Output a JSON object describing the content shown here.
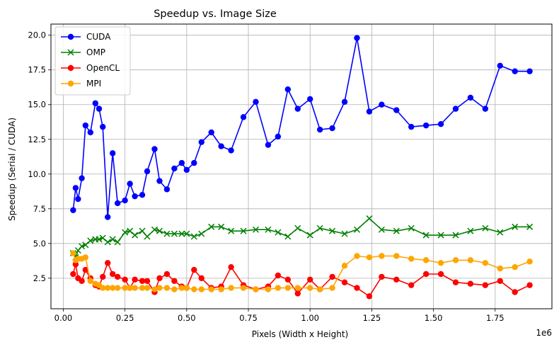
{
  "chart_data": {
    "type": "line",
    "title": "Speedup vs. Image Size",
    "xlabel": "Pixels (Width x Height)",
    "ylabel": "Speedup (Serial / CUDA)",
    "x_offset_label": "1e6",
    "xlim": [
      -0.05,
      1.98
    ],
    "ylim": [
      0.3,
      20.8
    ],
    "xticks": [
      0.0,
      0.25,
      0.5,
      0.75,
      1.0,
      1.25,
      1.5,
      1.75
    ],
    "xtick_labels": [
      "0.00",
      "0.25",
      "0.50",
      "0.75",
      "1.00",
      "1.25",
      "1.50",
      "1.75"
    ],
    "yticks": [
      2.5,
      5.0,
      7.5,
      10.0,
      12.5,
      15.0,
      17.5,
      20.0
    ],
    "ytick_labels": [
      "2.5",
      "5.0",
      "7.5",
      "10.0",
      "12.5",
      "15.0",
      "17.5",
      "20.0"
    ],
    "grid": true,
    "legend_position": "top-left",
    "series": [
      {
        "name": "CUDA",
        "color": "#0000ff",
        "marker": "circle",
        "x": [
          0.04,
          0.05,
          0.06,
          0.075,
          0.09,
          0.11,
          0.13,
          0.145,
          0.16,
          0.18,
          0.2,
          0.22,
          0.25,
          0.27,
          0.29,
          0.32,
          0.34,
          0.37,
          0.39,
          0.42,
          0.45,
          0.48,
          0.5,
          0.53,
          0.56,
          0.6,
          0.64,
          0.68,
          0.73,
          0.78,
          0.83,
          0.87,
          0.91,
          0.95,
          1.0,
          1.04,
          1.09,
          1.14,
          1.19,
          1.24,
          1.29,
          1.35,
          1.41,
          1.47,
          1.53,
          1.59,
          1.65,
          1.71,
          1.77,
          1.83,
          1.89
        ],
        "y": [
          7.4,
          9.0,
          8.2,
          9.7,
          13.5,
          13.0,
          15.1,
          14.7,
          13.4,
          6.9,
          11.5,
          7.9,
          8.1,
          9.3,
          8.4,
          8.5,
          10.2,
          11.8,
          9.5,
          8.9,
          10.4,
          10.8,
          10.3,
          10.8,
          12.3,
          13.0,
          12.0,
          11.7,
          14.1,
          15.2,
          12.1,
          12.7,
          16.1,
          14.7,
          15.4,
          13.2,
          13.3,
          15.2,
          19.8,
          14.5,
          15.0,
          14.6,
          13.4,
          13.5,
          13.6,
          14.7,
          15.5,
          14.7,
          17.8,
          17.4,
          17.4
        ]
      },
      {
        "name": "OMP",
        "color": "#008000",
        "marker": "x",
        "x": [
          0.04,
          0.05,
          0.06,
          0.075,
          0.09,
          0.11,
          0.13,
          0.145,
          0.16,
          0.18,
          0.2,
          0.22,
          0.25,
          0.27,
          0.29,
          0.32,
          0.34,
          0.37,
          0.39,
          0.42,
          0.45,
          0.48,
          0.5,
          0.53,
          0.56,
          0.6,
          0.64,
          0.68,
          0.73,
          0.78,
          0.83,
          0.87,
          0.91,
          0.95,
          1.0,
          1.04,
          1.09,
          1.14,
          1.19,
          1.24,
          1.29,
          1.35,
          1.41,
          1.47,
          1.53,
          1.59,
          1.65,
          1.71,
          1.77,
          1.83,
          1.89
        ],
        "y": [
          4.3,
          4.0,
          4.5,
          4.8,
          4.9,
          5.2,
          5.3,
          5.3,
          5.4,
          5.1,
          5.3,
          5.1,
          5.8,
          5.9,
          5.6,
          5.9,
          5.5,
          6.0,
          5.9,
          5.7,
          5.7,
          5.7,
          5.7,
          5.5,
          5.7,
          6.2,
          6.2,
          5.9,
          5.9,
          6.0,
          6.0,
          5.8,
          5.5,
          6.1,
          5.6,
          6.1,
          5.9,
          5.7,
          6.0,
          6.8,
          6.0,
          5.9,
          6.1,
          5.6,
          5.6,
          5.6,
          5.9,
          6.1,
          5.8,
          6.2,
          6.2
        ]
      },
      {
        "name": "OpenCL",
        "color": "#ff0000",
        "marker": "circle",
        "x": [
          0.04,
          0.05,
          0.06,
          0.075,
          0.09,
          0.11,
          0.13,
          0.145,
          0.16,
          0.18,
          0.2,
          0.22,
          0.25,
          0.27,
          0.29,
          0.32,
          0.34,
          0.37,
          0.39,
          0.42,
          0.45,
          0.48,
          0.5,
          0.53,
          0.56,
          0.6,
          0.64,
          0.68,
          0.73,
          0.78,
          0.83,
          0.87,
          0.91,
          0.95,
          1.0,
          1.04,
          1.09,
          1.14,
          1.19,
          1.24,
          1.29,
          1.35,
          1.41,
          1.47,
          1.53,
          1.59,
          1.65,
          1.71,
          1.77,
          1.83,
          1.89
        ],
        "y": [
          2.8,
          3.5,
          2.5,
          2.3,
          3.1,
          2.5,
          2.0,
          1.9,
          2.6,
          3.6,
          2.8,
          2.6,
          2.4,
          1.8,
          2.4,
          2.3,
          2.3,
          1.5,
          2.5,
          2.8,
          2.3,
          1.9,
          1.8,
          3.1,
          2.5,
          1.8,
          1.9,
          3.3,
          2.0,
          1.7,
          1.9,
          2.7,
          2.4,
          1.4,
          2.4,
          1.7,
          2.6,
          2.2,
          1.8,
          1.2,
          2.6,
          2.4,
          2.0,
          2.8,
          2.8,
          2.2,
          2.1,
          2.0,
          2.3,
          1.5,
          2.0
        ]
      },
      {
        "name": "MPI",
        "color": "#ffa500",
        "marker": "circle",
        "x": [
          0.04,
          0.05,
          0.06,
          0.075,
          0.09,
          0.11,
          0.13,
          0.145,
          0.16,
          0.18,
          0.2,
          0.22,
          0.25,
          0.27,
          0.29,
          0.32,
          0.34,
          0.37,
          0.39,
          0.42,
          0.45,
          0.48,
          0.5,
          0.53,
          0.56,
          0.6,
          0.64,
          0.68,
          0.73,
          0.78,
          0.83,
          0.87,
          0.91,
          0.95,
          1.0,
          1.04,
          1.09,
          1.14,
          1.19,
          1.24,
          1.29,
          1.35,
          1.41,
          1.47,
          1.53,
          1.59,
          1.65,
          1.71,
          1.77,
          1.83,
          1.89
        ],
        "y": [
          4.3,
          3.8,
          3.9,
          3.9,
          4.0,
          2.3,
          2.1,
          2.0,
          1.8,
          1.8,
          1.8,
          1.8,
          1.8,
          1.8,
          1.8,
          1.8,
          1.8,
          1.7,
          1.8,
          1.8,
          1.7,
          1.8,
          1.8,
          1.7,
          1.7,
          1.7,
          1.7,
          1.8,
          1.8,
          1.7,
          1.7,
          1.8,
          1.8,
          1.8,
          1.8,
          1.7,
          1.8,
          3.4,
          4.1,
          4.0,
          4.1,
          4.1,
          3.9,
          3.8,
          3.6,
          3.8,
          3.8,
          3.6,
          3.2,
          3.3,
          3.7
        ]
      }
    ]
  }
}
